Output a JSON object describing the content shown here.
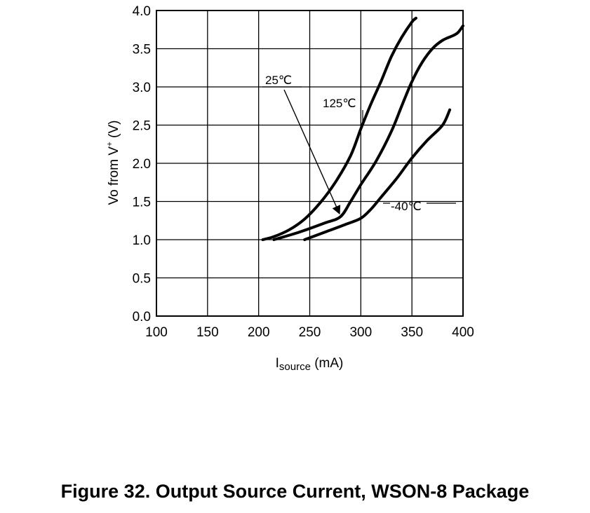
{
  "figure": {
    "caption": "Figure 32. Output Source Current, WSON-8 Package"
  },
  "chart_data": {
    "type": "line",
    "xlabel_main": "I",
    "xlabel_sub": "source",
    "xlabel_unit": " (mA)",
    "ylabel_main": "Vo from V",
    "ylabel_sup": "+",
    "ylabel_unit": " (V)",
    "xlim": [
      100,
      400
    ],
    "ylim": [
      0,
      4.0
    ],
    "xticks": [
      100,
      150,
      200,
      250,
      300,
      350,
      400
    ],
    "yticks": [
      "0.0",
      "0.5",
      "1.0",
      "1.5",
      "2.0",
      "2.5",
      "3.0",
      "3.5",
      "4.0"
    ],
    "grid": true,
    "series": [
      {
        "name": "125℃",
        "x": [
          204,
          215,
          230,
          245,
          260,
          275,
          290,
          300,
          310,
          320,
          330,
          340,
          350,
          354
        ],
        "y": [
          1.0,
          1.04,
          1.13,
          1.27,
          1.48,
          1.75,
          2.1,
          2.45,
          2.78,
          3.08,
          3.4,
          3.65,
          3.85,
          3.9
        ]
      },
      {
        "name": "25℃",
        "x": [
          215,
          240,
          265,
          280,
          290,
          300,
          315,
          330,
          340,
          350,
          360,
          370,
          380,
          390,
          395,
          400
        ],
        "y": [
          1.0,
          1.1,
          1.22,
          1.3,
          1.5,
          1.72,
          2.03,
          2.42,
          2.75,
          3.07,
          3.32,
          3.5,
          3.61,
          3.67,
          3.71,
          3.8
        ]
      },
      {
        "name": "-40℃",
        "x": [
          245,
          265,
          285,
          300,
          310,
          320,
          335,
          350,
          365,
          380,
          387
        ],
        "y": [
          1.0,
          1.1,
          1.2,
          1.28,
          1.4,
          1.56,
          1.8,
          2.07,
          2.3,
          2.5,
          2.7
        ]
      }
    ],
    "annotations": [
      {
        "text": "25℃",
        "series": "25℃",
        "arrow_target": [
          281,
          1.32
        ]
      },
      {
        "text": "125℃",
        "series": "125℃"
      },
      {
        "text": "-40℃",
        "series": "-40℃"
      }
    ]
  }
}
